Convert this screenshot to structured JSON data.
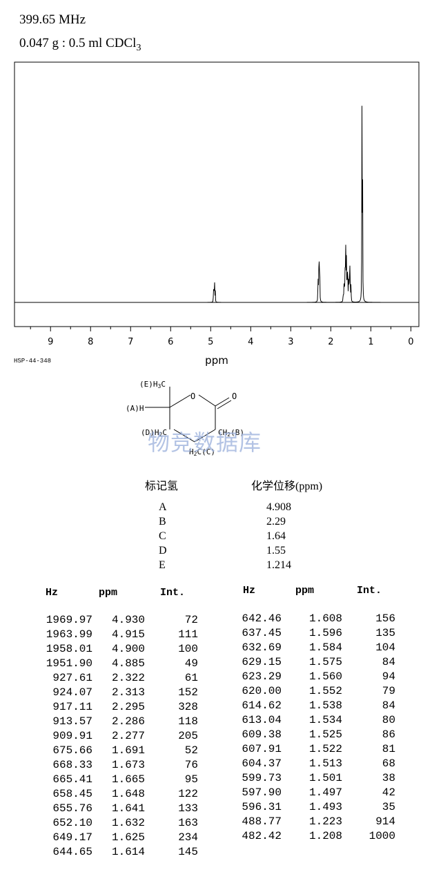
{
  "header": {
    "frequency": "399.65 MHz",
    "sample": "0.047 g : 0.5 ml CDCl",
    "sample_sub": "3"
  },
  "code": "HSP-44-348",
  "chart_data": {
    "type": "line",
    "xlabel": "ppm",
    "xlim": [
      9.9,
      -0.2
    ],
    "x_ticks": [
      "9",
      "8",
      "7",
      "6",
      "5",
      "4",
      "3",
      "2",
      "1",
      "0"
    ],
    "grid": false,
    "peaks": [
      {
        "ppm": 4.93,
        "int": 72
      },
      {
        "ppm": 4.915,
        "int": 111
      },
      {
        "ppm": 4.9,
        "int": 100
      },
      {
        "ppm": 4.885,
        "int": 49
      },
      {
        "ppm": 2.322,
        "int": 61
      },
      {
        "ppm": 2.313,
        "int": 152
      },
      {
        "ppm": 2.295,
        "int": 328
      },
      {
        "ppm": 2.286,
        "int": 118
      },
      {
        "ppm": 2.277,
        "int": 205
      },
      {
        "ppm": 1.691,
        "int": 52
      },
      {
        "ppm": 1.673,
        "int": 76
      },
      {
        "ppm": 1.665,
        "int": 95
      },
      {
        "ppm": 1.648,
        "int": 122
      },
      {
        "ppm": 1.641,
        "int": 133
      },
      {
        "ppm": 1.632,
        "int": 163
      },
      {
        "ppm": 1.625,
        "int": 234
      },
      {
        "ppm": 1.614,
        "int": 145
      },
      {
        "ppm": 1.608,
        "int": 156
      },
      {
        "ppm": 1.596,
        "int": 135
      },
      {
        "ppm": 1.584,
        "int": 104
      },
      {
        "ppm": 1.575,
        "int": 84
      },
      {
        "ppm": 1.56,
        "int": 94
      },
      {
        "ppm": 1.552,
        "int": 79
      },
      {
        "ppm": 1.538,
        "int": 84
      },
      {
        "ppm": 1.534,
        "int": 80
      },
      {
        "ppm": 1.525,
        "int": 86
      },
      {
        "ppm": 1.522,
        "int": 81
      },
      {
        "ppm": 1.513,
        "int": 68
      },
      {
        "ppm": 1.501,
        "int": 38
      },
      {
        "ppm": 1.497,
        "int": 42
      },
      {
        "ppm": 1.493,
        "int": 35
      },
      {
        "ppm": 1.223,
        "int": 914
      },
      {
        "ppm": 1.208,
        "int": 1000
      }
    ]
  },
  "structure": {
    "labels": {
      "e_group": "(E)H",
      "e_sub": "3",
      "e_c": "C",
      "a_group": "(A)H",
      "d_group": "(D)H",
      "d_sub": "2",
      "d_c": "C",
      "ring_o": "O",
      "carbonyl_o": "O",
      "b_c": "C",
      "b_h": "H",
      "b_sub": "2",
      "b_tag": "(B)",
      "c_h": "H",
      "c_sub": "2",
      "c_tag": "C(C)"
    }
  },
  "watermark": "物竞数据库",
  "assignment": {
    "label_header": "标记氢",
    "shift_header": "化学位移(ppm)",
    "rows": [
      {
        "label": "A",
        "shift": "4.908"
      },
      {
        "label": "B",
        "shift": "2.29"
      },
      {
        "label": "C",
        "shift": "1.64"
      },
      {
        "label": "D",
        "shift": "1.55"
      },
      {
        "label": "E",
        "shift": "1.214"
      }
    ]
  },
  "peak_table": {
    "headers": [
      "Hz",
      "ppm",
      "Int."
    ],
    "left": [
      [
        "1969.97",
        "4.930",
        "72"
      ],
      [
        "1963.99",
        "4.915",
        "111"
      ],
      [
        "1958.01",
        "4.900",
        "100"
      ],
      [
        "1951.90",
        "4.885",
        "49"
      ],
      [
        "927.61",
        "2.322",
        "61"
      ],
      [
        "924.07",
        "2.313",
        "152"
      ],
      [
        "917.11",
        "2.295",
        "328"
      ],
      [
        "913.57",
        "2.286",
        "118"
      ],
      [
        "909.91",
        "2.277",
        "205"
      ],
      [
        "675.66",
        "1.691",
        "52"
      ],
      [
        "668.33",
        "1.673",
        "76"
      ],
      [
        "665.41",
        "1.665",
        "95"
      ],
      [
        "658.45",
        "1.648",
        "122"
      ],
      [
        "655.76",
        "1.641",
        "133"
      ],
      [
        "652.10",
        "1.632",
        "163"
      ],
      [
        "649.17",
        "1.625",
        "234"
      ],
      [
        "644.65",
        "1.614",
        "145"
      ]
    ],
    "right": [
      [
        "642.46",
        "1.608",
        "156"
      ],
      [
        "637.45",
        "1.596",
        "135"
      ],
      [
        "632.69",
        "1.584",
        "104"
      ],
      [
        "629.15",
        "1.575",
        "84"
      ],
      [
        "623.29",
        "1.560",
        "94"
      ],
      [
        "620.00",
        "1.552",
        "79"
      ],
      [
        "614.62",
        "1.538",
        "84"
      ],
      [
        "613.04",
        "1.534",
        "80"
      ],
      [
        "609.38",
        "1.525",
        "86"
      ],
      [
        "607.91",
        "1.522",
        "81"
      ],
      [
        "604.37",
        "1.513",
        "68"
      ],
      [
        "599.73",
        "1.501",
        "38"
      ],
      [
        "597.90",
        "1.497",
        "42"
      ],
      [
        "596.31",
        "1.493",
        "35"
      ],
      [
        "488.77",
        "1.223",
        "914"
      ],
      [
        "482.42",
        "1.208",
        "1000"
      ]
    ]
  }
}
